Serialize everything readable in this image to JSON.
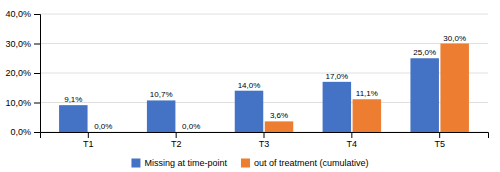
{
  "chart_data": {
    "type": "bar",
    "categories": [
      "T1",
      "T2",
      "T3",
      "T4",
      "T5"
    ],
    "series": [
      {
        "name": "Missing at time-point",
        "color": "#4472C4",
        "values": [
          9.1,
          10.7,
          14.0,
          17.0,
          25.0
        ],
        "value_labels": [
          "9,1%",
          "10,7%",
          "14,0%",
          "17,0%",
          "25,0%"
        ]
      },
      {
        "name": "out of treatment (cumulative)",
        "color": "#ED7D31",
        "values": [
          0.0,
          0.0,
          3.6,
          11.1,
          30.0
        ],
        "value_labels": [
          "0,0%",
          "0,0%",
          "3,6%",
          "11,1%",
          "30,0%"
        ]
      }
    ],
    "ylim": [
      0,
      40
    ],
    "yticks": [
      {
        "value": 0,
        "label": "0,0%"
      },
      {
        "value": 10,
        "label": "10,0%"
      },
      {
        "value": 20,
        "label": "20,0%"
      },
      {
        "value": 30,
        "label": "30,0%"
      },
      {
        "value": 40,
        "label": "40,0%"
      }
    ],
    "grid": true,
    "data_labels": true,
    "legend": "bottom"
  }
}
